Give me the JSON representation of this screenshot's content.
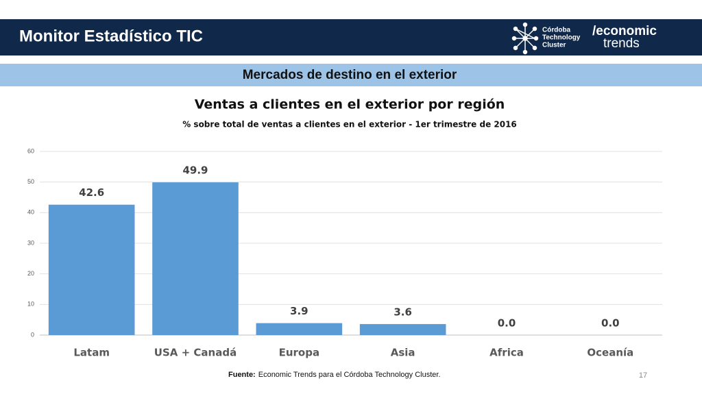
{
  "header": {
    "title": "Monitor Estadístico TIC",
    "logo_lines": [
      "Córdoba",
      "Technology",
      "Cluster"
    ],
    "brand": "/economic",
    "brand_sub": "trends"
  },
  "section": "Mercados de destino en el exterior",
  "chart_data": {
    "type": "bar",
    "title": "Ventas a clientes en el exterior por región",
    "subtitle": "% sobre total de ventas a clientes en el exterior - 1er trimestre de 2016",
    "categories": [
      "Latam",
      "USA + Canadá",
      "Europa",
      "Asia",
      "Africa",
      "Oceanía"
    ],
    "values": [
      42.6,
      49.9,
      3.9,
      3.6,
      0,
      0
    ],
    "value_labels": [
      "42.6",
      "49.9",
      "3.9",
      "3.6",
      "0.0",
      "0.0"
    ],
    "color": "#5b9bd5",
    "ylim": [
      0,
      60
    ],
    "yticks": [
      0,
      10,
      20,
      30,
      40,
      50,
      60
    ],
    "grid": true
  },
  "footer": {
    "label": "Fuente:",
    "text": "Economic Trends para el Córdoba Technology Cluster."
  },
  "page_number": "17"
}
